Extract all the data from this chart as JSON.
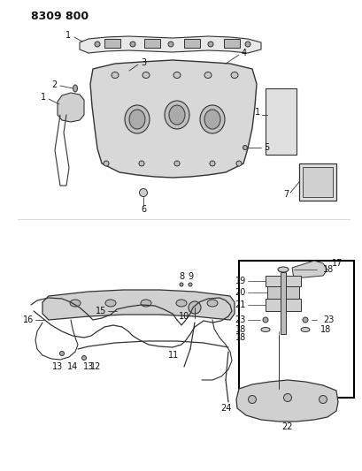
{
  "title": "8309 800",
  "background_color": "#ffffff",
  "fig_width": 4.1,
  "fig_height": 5.33,
  "dpi": 100,
  "title_fontsize": 10,
  "label_fontsize": 7,
  "line_color": "#333333",
  "part_color": "#888888",
  "fill_color": "#cccccc",
  "box_color": "#000000"
}
